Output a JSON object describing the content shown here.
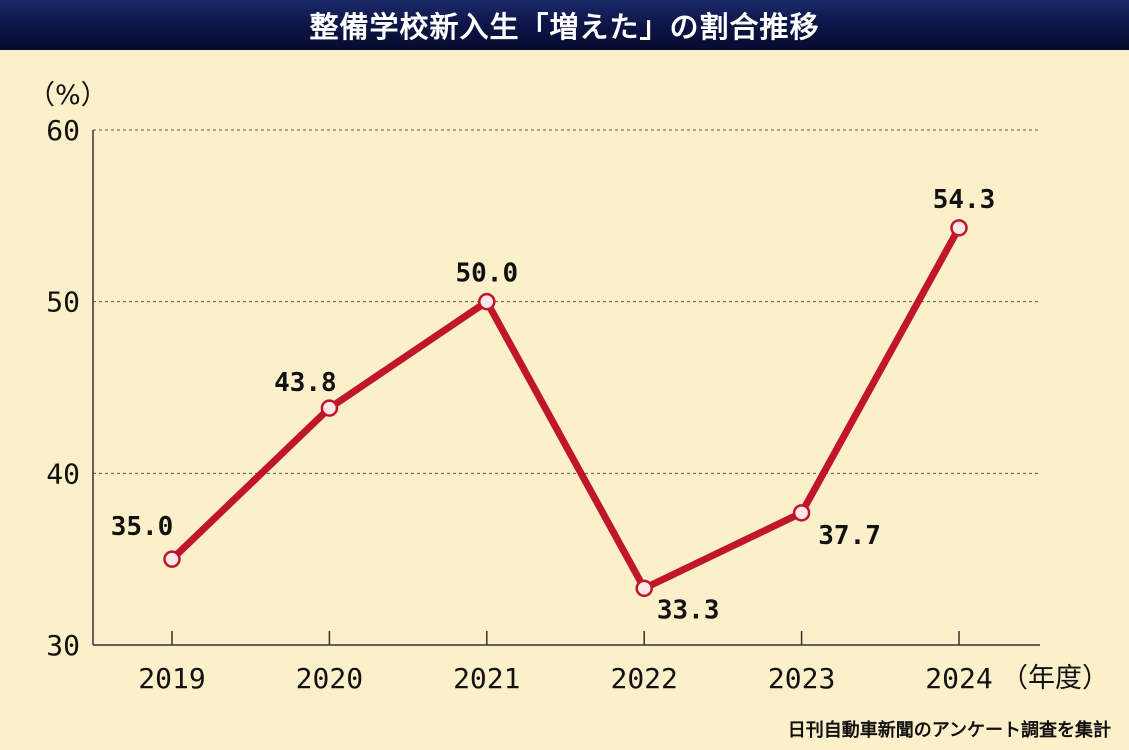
{
  "title": "整備学校新入生「増えた」の割合推移",
  "source": "日刊自動車新聞のアンケート調査を集計",
  "colors": {
    "line": "#c0152a",
    "marker_fill": "#fde8ec",
    "background": "#fbf0c9",
    "title_bar": "#0d1546"
  },
  "chart_data": {
    "type": "line",
    "categories": [
      "2019",
      "2020",
      "2021",
      "2022",
      "2023",
      "2024"
    ],
    "series": [
      {
        "values": [
          35.0,
          43.8,
          50.0,
          33.3,
          37.7,
          54.3
        ]
      }
    ],
    "data_labels": [
      "35.0",
      "43.8",
      "50.0",
      "33.3",
      "37.7",
      "54.3"
    ],
    "ylabel": "（%）",
    "xlabel": "（年度）",
    "ylim": [
      30,
      60
    ],
    "yticks": [
      30,
      40,
      50,
      60
    ],
    "grid": true,
    "legend": "none"
  }
}
